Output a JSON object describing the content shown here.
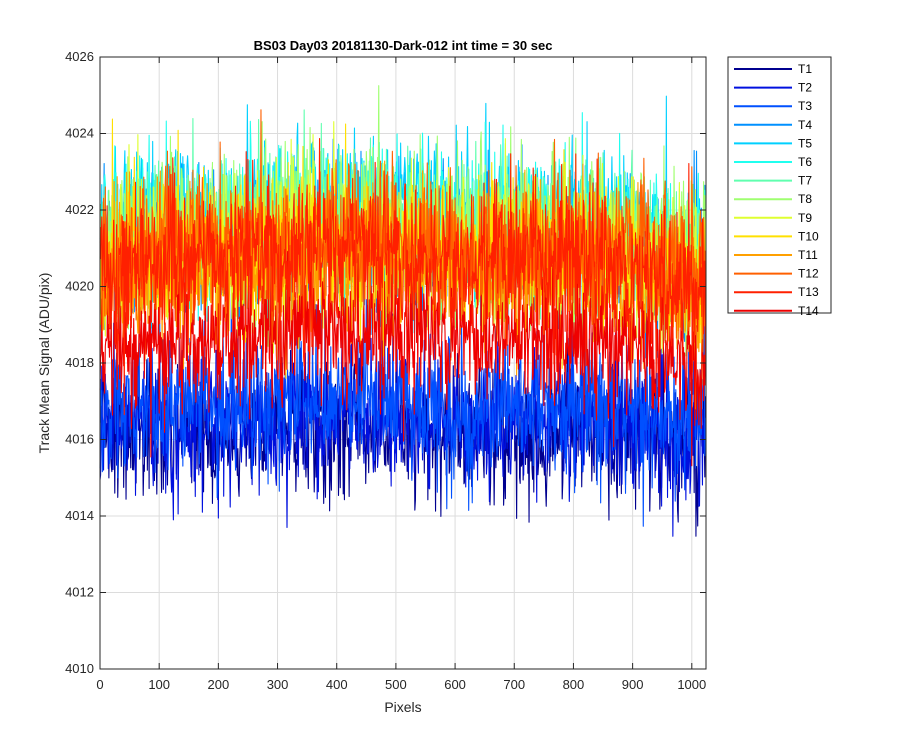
{
  "chart_data": {
    "type": "line",
    "title": "BS03 Day03 20181130-Dark-012 int time = 30 sec",
    "xlabel": "Pixels",
    "ylabel": "Track Mean Signal (ADU/pix)",
    "xlim": [
      0,
      1024
    ],
    "ylim": [
      4010,
      4026
    ],
    "xticks": [
      "0",
      "100",
      "200",
      "300",
      "400",
      "500",
      "600",
      "700",
      "800",
      "900",
      "1000"
    ],
    "xtick_values": [
      0,
      100,
      200,
      300,
      400,
      500,
      600,
      700,
      800,
      900,
      1000
    ],
    "yticks": [
      "4010",
      "4012",
      "4014",
      "4016",
      "4018",
      "4020",
      "4022",
      "4024",
      "4026"
    ],
    "ytick_values": [
      4010,
      4012,
      4014,
      4016,
      4018,
      4020,
      4022,
      4024,
      4026
    ],
    "grid": true,
    "legend_position": "outside-right",
    "series_draw_order": [
      0,
      1,
      2,
      3,
      4,
      5,
      6,
      7,
      8,
      9,
      10,
      13,
      11,
      12
    ],
    "series": [
      {
        "name": "T1",
        "color": "#00008F",
        "mean": [
          4016.4,
          4016.3,
          4016.2,
          4016.4,
          4016.5,
          4016.4,
          4016.1,
          4016.2,
          4016.3,
          4016.2,
          4016.0
        ],
        "noise": 0.9
      },
      {
        "name": "T2",
        "color": "#0010DF",
        "mean": [
          4016.6,
          4016.5,
          4016.5,
          4016.6,
          4016.7,
          4016.6,
          4016.4,
          4016.5,
          4016.5,
          4016.4,
          4016.2
        ],
        "noise": 0.9
      },
      {
        "name": "T3",
        "color": "#0050FF",
        "mean": [
          4017.0,
          4016.9,
          4016.9,
          4017.0,
          4017.1,
          4017.0,
          4016.8,
          4016.9,
          4016.9,
          4016.8,
          4016.6
        ],
        "noise": 0.9
      },
      {
        "name": "T4",
        "color": "#0090FF",
        "mean": [
          4020.8,
          4021.2,
          4021.1,
          4021.3,
          4021.4,
          4021.3,
          4021.1,
          4021.2,
          4021.1,
          4021.0,
          4020.4
        ],
        "noise": 1.0
      },
      {
        "name": "T5",
        "color": "#00D0FF",
        "mean": [
          4021.3,
          4021.8,
          4021.7,
          4021.9,
          4022.0,
          4021.9,
          4021.6,
          4021.8,
          4021.7,
          4021.5,
          4020.9
        ],
        "noise": 1.0
      },
      {
        "name": "T6",
        "color": "#20FFEF",
        "mean": [
          4021.2,
          4021.6,
          4021.5,
          4021.7,
          4021.8,
          4021.7,
          4021.4,
          4021.6,
          4021.5,
          4021.3,
          4020.7
        ],
        "noise": 1.0
      },
      {
        "name": "T7",
        "color": "#60FFAF",
        "mean": [
          4021.0,
          4021.4,
          4021.3,
          4021.5,
          4021.6,
          4021.5,
          4021.2,
          4021.4,
          4021.3,
          4021.1,
          4020.5
        ],
        "noise": 1.0
      },
      {
        "name": "T8",
        "color": "#9FFF70",
        "mean": [
          4021.1,
          4021.5,
          4021.4,
          4021.6,
          4021.7,
          4021.6,
          4021.3,
          4021.5,
          4021.4,
          4021.2,
          4020.6
        ],
        "noise": 1.0
      },
      {
        "name": "T9",
        "color": "#DFFF30",
        "mean": [
          4020.6,
          4021.0,
          4020.9,
          4021.1,
          4021.2,
          4021.1,
          4020.8,
          4021.0,
          4020.9,
          4020.7,
          4020.1
        ],
        "noise": 1.0
      },
      {
        "name": "T10",
        "color": "#FFE000",
        "mean": [
          4020.4,
          4020.8,
          4020.7,
          4020.9,
          4021.0,
          4020.9,
          4020.6,
          4020.8,
          4020.7,
          4020.5,
          4019.9
        ],
        "noise": 1.0
      },
      {
        "name": "T11",
        "color": "#FFA000",
        "mean": [
          4020.2,
          4020.6,
          4020.5,
          4020.7,
          4020.8,
          4020.7,
          4020.4,
          4020.6,
          4020.5,
          4020.3,
          4019.7
        ],
        "noise": 1.0
      },
      {
        "name": "T12",
        "color": "#FF6000",
        "mean": [
          4020.6,
          4021.0,
          4021.0,
          4021.2,
          4021.3,
          4021.2,
          4020.9,
          4021.1,
          4021.0,
          4020.8,
          4020.2
        ],
        "noise": 1.0
      },
      {
        "name": "T13",
        "color": "#FF2000",
        "mean": [
          4020.3,
          4020.8,
          4020.7,
          4020.9,
          4021.0,
          4020.9,
          4020.6,
          4020.8,
          4020.7,
          4020.5,
          4019.8
        ],
        "noise": 1.0
      },
      {
        "name": "T14",
        "color": "#EF0000",
        "mean": [
          4018.3,
          4018.5,
          4018.6,
          4018.7,
          4018.8,
          4018.8,
          4018.6,
          4018.7,
          4018.6,
          4018.4,
          4017.9
        ],
        "noise": 0.85
      }
    ]
  }
}
